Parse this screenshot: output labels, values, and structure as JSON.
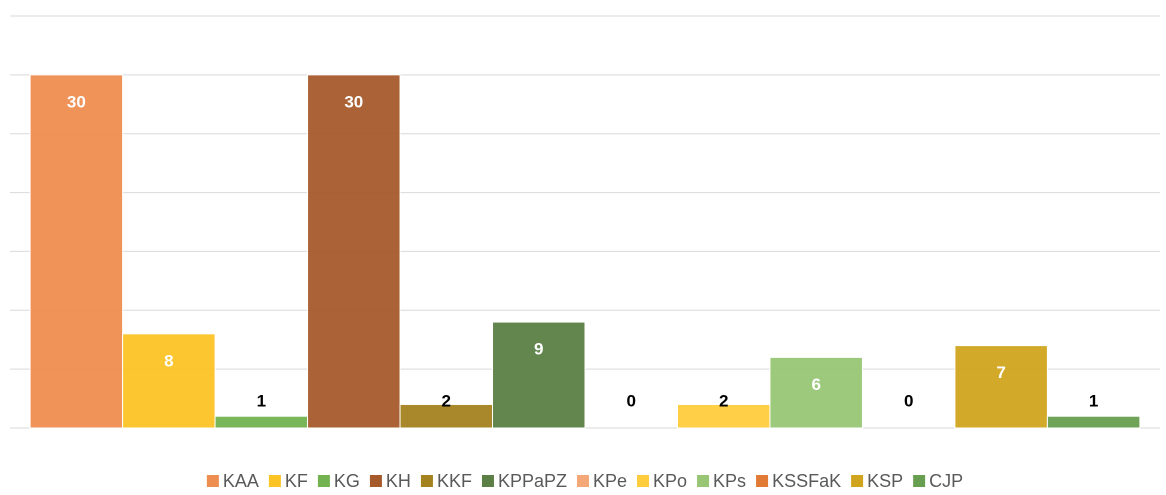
{
  "chart_data": {
    "type": "bar",
    "categories": [
      null
    ],
    "series": [
      {
        "name": "KAA",
        "color": "#ee8d50",
        "values": [
          30
        ]
      },
      {
        "name": "KF",
        "color": "#fbc324",
        "values": [
          8
        ]
      },
      {
        "name": "KG",
        "color": "#72b250",
        "values": [
          1
        ]
      },
      {
        "name": "KH",
        "color": "#a65a2c",
        "values": [
          30
        ]
      },
      {
        "name": "KKF",
        "color": "#a3821f",
        "values": [
          2
        ]
      },
      {
        "name": "KPPaPZ",
        "color": "#5b7f44",
        "values": [
          9
        ]
      },
      {
        "name": "KPe",
        "color": "#f4a877",
        "values": [
          0
        ]
      },
      {
        "name": "KPo",
        "color": "#ffcc3d",
        "values": [
          2
        ]
      },
      {
        "name": "KPs",
        "color": "#98c675",
        "values": [
          6
        ]
      },
      {
        "name": "KSSFaK",
        "color": "#e07a34",
        "values": [
          0
        ]
      },
      {
        "name": "KSP",
        "color": "#d0a41e",
        "values": [
          7
        ]
      },
      {
        "name": "CJP",
        "color": "#679e4f",
        "values": [
          1
        ]
      }
    ],
    "ylim": [
      0,
      35
    ],
    "yticks": [
      0,
      5,
      10,
      15,
      20,
      25,
      30,
      35
    ],
    "grid": true,
    "legend": "bottom"
  }
}
